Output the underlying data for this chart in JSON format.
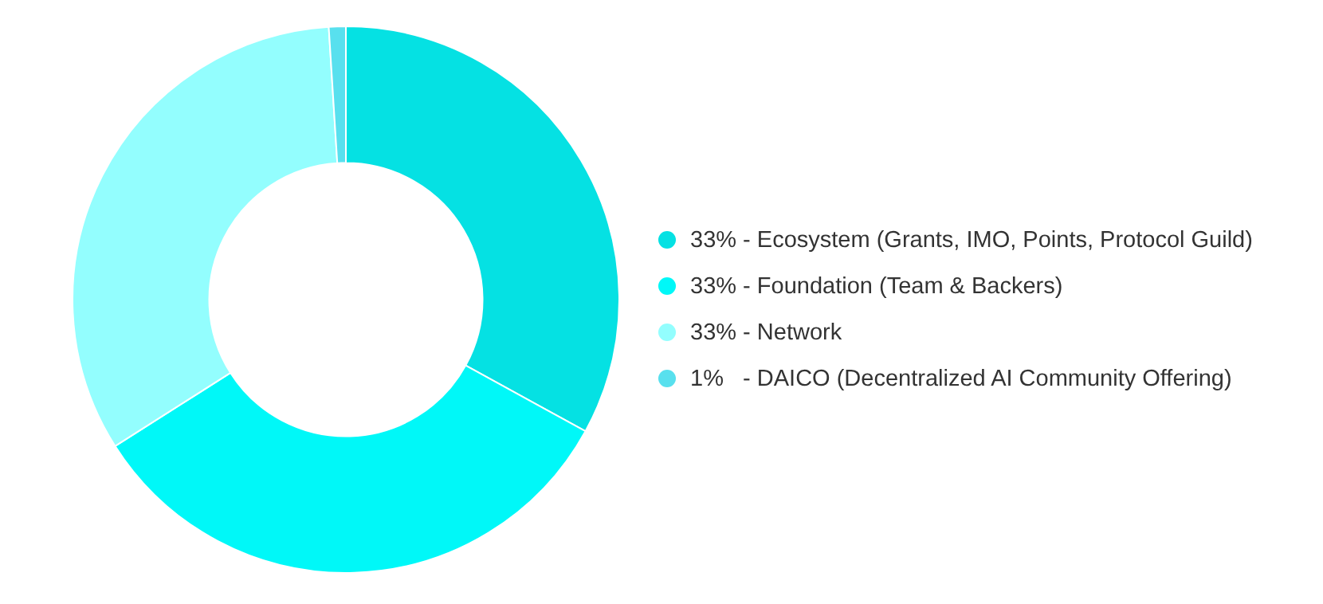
{
  "chart_data": {
    "type": "donut",
    "categories": [
      "33% - Ecosystem (Grants, IMO, Points, Protocol Guild)",
      "33% - Foundation (Team & Backers)",
      "33% - Network",
      "1%   - DAICO (Decentralized AI Community Offering)"
    ],
    "values": [
      33,
      33,
      33,
      1
    ],
    "colors": [
      "#05e1e3",
      "#00f8f8",
      "#93fefe",
      "#58e0ee"
    ],
    "legend": "right"
  }
}
